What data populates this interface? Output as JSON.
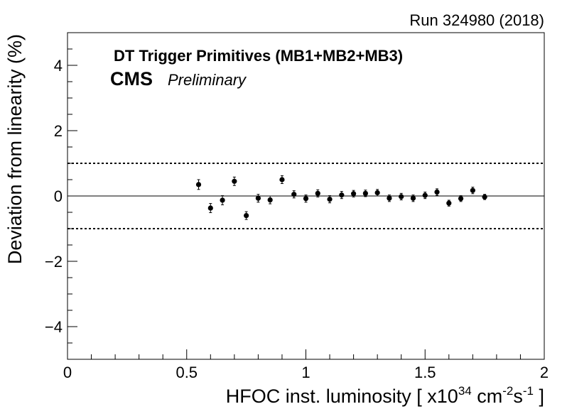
{
  "chart_data": {
    "type": "scatter",
    "run_label": "Run 324980 (2018)",
    "title": "DT Trigger Primitives (MB1+MB2+MB3)",
    "cms_label": "CMS",
    "preliminary_label": "Preliminary",
    "xlabel_prefix": "HFOC inst. luminosity [ x10",
    "xlabel_exp1": "34",
    "xlabel_mid": " cm",
    "xlabel_exp2": "-2",
    "xlabel_s": "s",
    "xlabel_exp3": "-1",
    "xlabel_suffix": " ]",
    "ylabel": "Deviation from linearity (%)",
    "xlim": [
      0,
      2
    ],
    "ylim": [
      -5,
      5
    ],
    "x_ticks": [
      0,
      0.5,
      1,
      1.5,
      2
    ],
    "x_tick_labels": [
      "0",
      "0.5",
      "1",
      "1.5",
      "2"
    ],
    "y_ticks": [
      -4,
      -2,
      0,
      2,
      4
    ],
    "y_tick_labels": [
      "−4",
      "−2",
      "0",
      "2",
      "4"
    ],
    "reference_lines": [
      -1,
      0,
      1
    ],
    "x": [
      0.55,
      0.6,
      0.65,
      0.7,
      0.75,
      0.8,
      0.85,
      0.9,
      0.95,
      1.0,
      1.05,
      1.1,
      1.15,
      1.2,
      1.25,
      1.3,
      1.35,
      1.4,
      1.45,
      1.5,
      1.55,
      1.6,
      1.65,
      1.7,
      1.75
    ],
    "y": [
      0.35,
      -0.37,
      -0.13,
      0.45,
      -0.6,
      -0.07,
      -0.12,
      0.5,
      0.05,
      -0.08,
      0.08,
      -0.1,
      0.03,
      0.07,
      0.08,
      0.1,
      -0.07,
      -0.02,
      -0.07,
      0.02,
      0.12,
      -0.22,
      -0.08,
      0.17,
      -0.03
    ],
    "y_err": [
      0.15,
      0.14,
      0.14,
      0.13,
      0.12,
      0.12,
      0.12,
      0.12,
      0.11,
      0.11,
      0.11,
      0.11,
      0.11,
      0.1,
      0.1,
      0.1,
      0.1,
      0.1,
      0.1,
      0.1,
      0.1,
      0.09,
      0.09,
      0.1,
      0.08
    ]
  }
}
